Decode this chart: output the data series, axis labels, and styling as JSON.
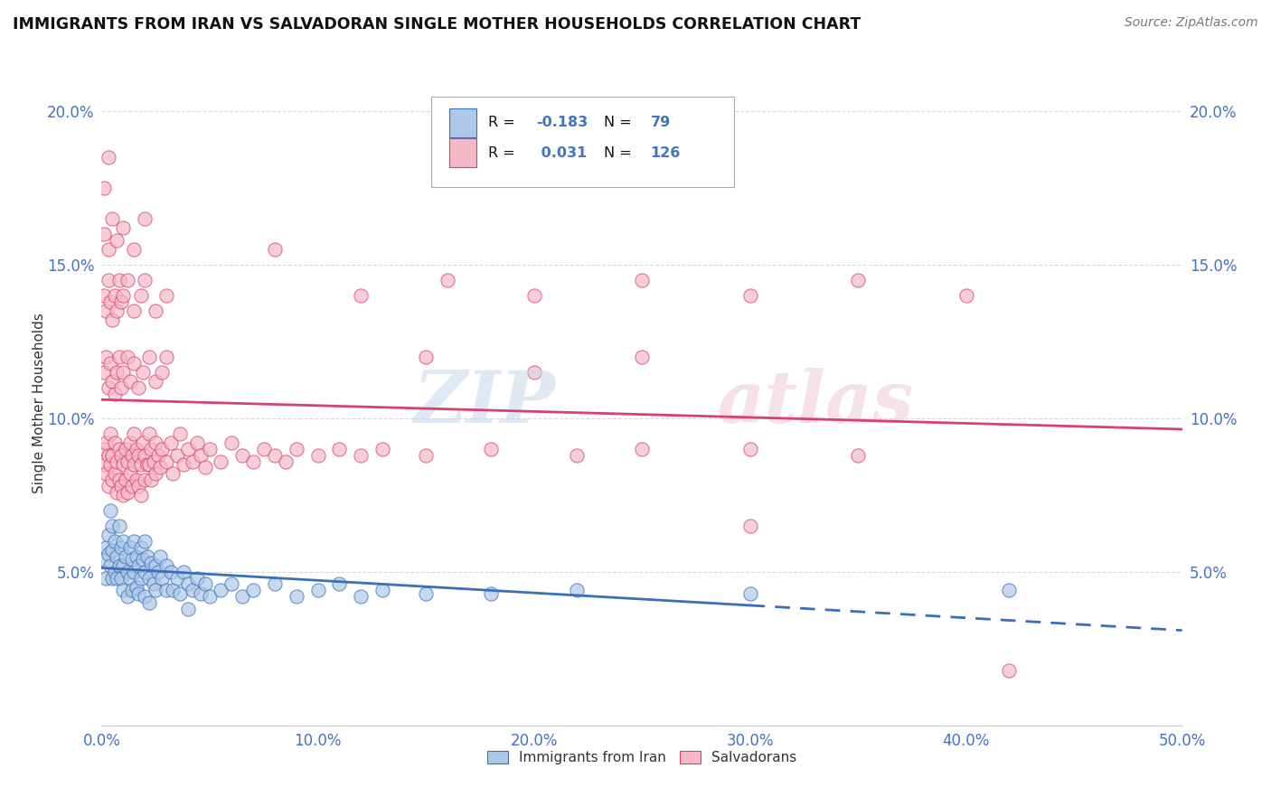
{
  "title": "IMMIGRANTS FROM IRAN VS SALVADORAN SINGLE MOTHER HOUSEHOLDS CORRELATION CHART",
  "source": "Source: ZipAtlas.com",
  "ylabel": "Single Mother Households",
  "xlim": [
    0.0,
    0.5
  ],
  "ylim": [
    0.0,
    0.21
  ],
  "xticks": [
    0.0,
    0.1,
    0.2,
    0.3,
    0.4,
    0.5
  ],
  "yticks": [
    0.0,
    0.05,
    0.1,
    0.15,
    0.2
  ],
  "ytick_labels": [
    "",
    "5.0%",
    "10.0%",
    "15.0%",
    "20.0%"
  ],
  "xtick_labels": [
    "0.0%",
    "10.0%",
    "20.0%",
    "30.0%",
    "40.0%",
    "50.0%"
  ],
  "blue_color": "#adc8e8",
  "pink_color": "#f5b8c8",
  "blue_line_color": "#3a6fba",
  "pink_line_color": "#d84070",
  "blue_scatter": [
    [
      0.001,
      0.054
    ],
    [
      0.002,
      0.058
    ],
    [
      0.002,
      0.048
    ],
    [
      0.003,
      0.062
    ],
    [
      0.003,
      0.056
    ],
    [
      0.004,
      0.07
    ],
    [
      0.004,
      0.052
    ],
    [
      0.005,
      0.065
    ],
    [
      0.005,
      0.057
    ],
    [
      0.005,
      0.048
    ],
    [
      0.006,
      0.06
    ],
    [
      0.006,
      0.05
    ],
    [
      0.007,
      0.055
    ],
    [
      0.007,
      0.048
    ],
    [
      0.008,
      0.065
    ],
    [
      0.008,
      0.052
    ],
    [
      0.009,
      0.058
    ],
    [
      0.009,
      0.048
    ],
    [
      0.01,
      0.06
    ],
    [
      0.01,
      0.052
    ],
    [
      0.01,
      0.044
    ],
    [
      0.011,
      0.055
    ],
    [
      0.012,
      0.05
    ],
    [
      0.012,
      0.042
    ],
    [
      0.013,
      0.058
    ],
    [
      0.013,
      0.048
    ],
    [
      0.014,
      0.054
    ],
    [
      0.014,
      0.044
    ],
    [
      0.015,
      0.06
    ],
    [
      0.015,
      0.05
    ],
    [
      0.016,
      0.055
    ],
    [
      0.016,
      0.045
    ],
    [
      0.017,
      0.052
    ],
    [
      0.017,
      0.043
    ],
    [
      0.018,
      0.058
    ],
    [
      0.018,
      0.048
    ],
    [
      0.019,
      0.054
    ],
    [
      0.02,
      0.06
    ],
    [
      0.02,
      0.05
    ],
    [
      0.02,
      0.042
    ],
    [
      0.021,
      0.055
    ],
    [
      0.022,
      0.048
    ],
    [
      0.022,
      0.04
    ],
    [
      0.023,
      0.053
    ],
    [
      0.024,
      0.046
    ],
    [
      0.025,
      0.052
    ],
    [
      0.025,
      0.044
    ],
    [
      0.026,
      0.05
    ],
    [
      0.027,
      0.055
    ],
    [
      0.028,
      0.048
    ],
    [
      0.03,
      0.052
    ],
    [
      0.03,
      0.044
    ],
    [
      0.032,
      0.05
    ],
    [
      0.033,
      0.044
    ],
    [
      0.035,
      0.048
    ],
    [
      0.036,
      0.043
    ],
    [
      0.038,
      0.05
    ],
    [
      0.04,
      0.046
    ],
    [
      0.04,
      0.038
    ],
    [
      0.042,
      0.044
    ],
    [
      0.044,
      0.048
    ],
    [
      0.046,
      0.043
    ],
    [
      0.048,
      0.046
    ],
    [
      0.05,
      0.042
    ],
    [
      0.055,
      0.044
    ],
    [
      0.06,
      0.046
    ],
    [
      0.065,
      0.042
    ],
    [
      0.07,
      0.044
    ],
    [
      0.08,
      0.046
    ],
    [
      0.09,
      0.042
    ],
    [
      0.1,
      0.044
    ],
    [
      0.11,
      0.046
    ],
    [
      0.12,
      0.042
    ],
    [
      0.13,
      0.044
    ],
    [
      0.15,
      0.043
    ],
    [
      0.18,
      0.043
    ],
    [
      0.22,
      0.044
    ],
    [
      0.3,
      0.043
    ],
    [
      0.42,
      0.044
    ]
  ],
  "pink_scatter": [
    [
      0.001,
      0.09
    ],
    [
      0.001,
      0.085
    ],
    [
      0.002,
      0.092
    ],
    [
      0.002,
      0.082
    ],
    [
      0.003,
      0.088
    ],
    [
      0.003,
      0.078
    ],
    [
      0.004,
      0.085
    ],
    [
      0.004,
      0.095
    ],
    [
      0.005,
      0.088
    ],
    [
      0.005,
      0.08
    ],
    [
      0.006,
      0.092
    ],
    [
      0.006,
      0.082
    ],
    [
      0.007,
      0.086
    ],
    [
      0.007,
      0.076
    ],
    [
      0.008,
      0.09
    ],
    [
      0.008,
      0.08
    ],
    [
      0.009,
      0.088
    ],
    [
      0.009,
      0.078
    ],
    [
      0.01,
      0.085
    ],
    [
      0.01,
      0.075
    ],
    [
      0.011,
      0.09
    ],
    [
      0.011,
      0.08
    ],
    [
      0.012,
      0.086
    ],
    [
      0.012,
      0.076
    ],
    [
      0.013,
      0.092
    ],
    [
      0.013,
      0.082
    ],
    [
      0.014,
      0.088
    ],
    [
      0.014,
      0.078
    ],
    [
      0.015,
      0.085
    ],
    [
      0.015,
      0.095
    ],
    [
      0.016,
      0.09
    ],
    [
      0.016,
      0.08
    ],
    [
      0.017,
      0.088
    ],
    [
      0.017,
      0.078
    ],
    [
      0.018,
      0.085
    ],
    [
      0.018,
      0.075
    ],
    [
      0.019,
      0.092
    ],
    [
      0.02,
      0.088
    ],
    [
      0.02,
      0.08
    ],
    [
      0.021,
      0.085
    ],
    [
      0.022,
      0.095
    ],
    [
      0.022,
      0.085
    ],
    [
      0.023,
      0.09
    ],
    [
      0.023,
      0.08
    ],
    [
      0.024,
      0.086
    ],
    [
      0.025,
      0.092
    ],
    [
      0.025,
      0.082
    ],
    [
      0.026,
      0.088
    ],
    [
      0.027,
      0.084
    ],
    [
      0.028,
      0.09
    ],
    [
      0.03,
      0.086
    ],
    [
      0.032,
      0.092
    ],
    [
      0.033,
      0.082
    ],
    [
      0.035,
      0.088
    ],
    [
      0.036,
      0.095
    ],
    [
      0.038,
      0.085
    ],
    [
      0.04,
      0.09
    ],
    [
      0.042,
      0.086
    ],
    [
      0.044,
      0.092
    ],
    [
      0.046,
      0.088
    ],
    [
      0.048,
      0.084
    ],
    [
      0.05,
      0.09
    ],
    [
      0.055,
      0.086
    ],
    [
      0.06,
      0.092
    ],
    [
      0.065,
      0.088
    ],
    [
      0.07,
      0.086
    ],
    [
      0.075,
      0.09
    ],
    [
      0.08,
      0.088
    ],
    [
      0.085,
      0.086
    ],
    [
      0.09,
      0.09
    ],
    [
      0.1,
      0.088
    ],
    [
      0.11,
      0.09
    ],
    [
      0.12,
      0.088
    ],
    [
      0.13,
      0.09
    ],
    [
      0.15,
      0.088
    ],
    [
      0.18,
      0.09
    ],
    [
      0.22,
      0.088
    ],
    [
      0.25,
      0.09
    ],
    [
      0.3,
      0.09
    ],
    [
      0.35,
      0.088
    ],
    [
      0.001,
      0.115
    ],
    [
      0.002,
      0.12
    ],
    [
      0.003,
      0.11
    ],
    [
      0.004,
      0.118
    ],
    [
      0.005,
      0.112
    ],
    [
      0.006,
      0.108
    ],
    [
      0.007,
      0.115
    ],
    [
      0.008,
      0.12
    ],
    [
      0.009,
      0.11
    ],
    [
      0.01,
      0.115
    ],
    [
      0.012,
      0.12
    ],
    [
      0.013,
      0.112
    ],
    [
      0.015,
      0.118
    ],
    [
      0.017,
      0.11
    ],
    [
      0.019,
      0.115
    ],
    [
      0.022,
      0.12
    ],
    [
      0.025,
      0.112
    ],
    [
      0.028,
      0.115
    ],
    [
      0.03,
      0.12
    ],
    [
      0.001,
      0.14
    ],
    [
      0.002,
      0.135
    ],
    [
      0.003,
      0.145
    ],
    [
      0.004,
      0.138
    ],
    [
      0.005,
      0.132
    ],
    [
      0.006,
      0.14
    ],
    [
      0.007,
      0.135
    ],
    [
      0.008,
      0.145
    ],
    [
      0.009,
      0.138
    ],
    [
      0.01,
      0.14
    ],
    [
      0.012,
      0.145
    ],
    [
      0.015,
      0.135
    ],
    [
      0.018,
      0.14
    ],
    [
      0.02,
      0.145
    ],
    [
      0.025,
      0.135
    ],
    [
      0.03,
      0.14
    ],
    [
      0.001,
      0.16
    ],
    [
      0.003,
      0.155
    ],
    [
      0.005,
      0.165
    ],
    [
      0.007,
      0.158
    ],
    [
      0.01,
      0.162
    ],
    [
      0.015,
      0.155
    ],
    [
      0.02,
      0.165
    ],
    [
      0.001,
      0.175
    ],
    [
      0.003,
      0.185
    ],
    [
      0.08,
      0.155
    ],
    [
      0.12,
      0.14
    ],
    [
      0.16,
      0.145
    ],
    [
      0.2,
      0.14
    ],
    [
      0.25,
      0.145
    ],
    [
      0.3,
      0.14
    ],
    [
      0.35,
      0.145
    ],
    [
      0.4,
      0.14
    ],
    [
      0.15,
      0.12
    ],
    [
      0.2,
      0.115
    ],
    [
      0.25,
      0.12
    ],
    [
      0.3,
      0.065
    ],
    [
      0.42,
      0.018
    ]
  ],
  "background_color": "#ffffff",
  "grid_color": "#d8d8d8"
}
